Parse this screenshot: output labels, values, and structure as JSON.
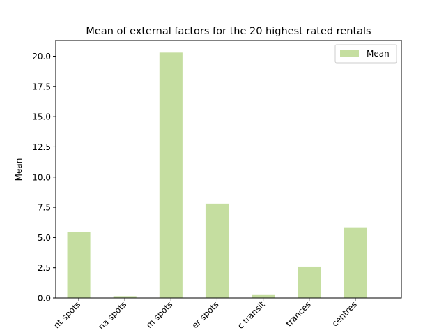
{
  "chart_data": {
    "type": "bar",
    "title": "Mean of external factors for the 20 highest rated rentals",
    "xlabel": "",
    "ylabel": "Mean",
    "categories": [
      "nt spots",
      "na spots",
      "m spots",
      "er spots",
      "c transit",
      "trances",
      "centres"
    ],
    "series": [
      {
        "name": "Mean",
        "values": [
          5.45,
          0.15,
          20.3,
          7.8,
          0.3,
          2.6,
          5.85
        ]
      }
    ],
    "ylim": [
      0,
      21.3
    ],
    "yticks": [
      "0.0",
      "2.5",
      "5.0",
      "7.5",
      "10.0",
      "12.5",
      "15.0",
      "17.5",
      "20.0"
    ],
    "bar_color": "#c5dea0",
    "grid": false,
    "legend": "top-right"
  }
}
